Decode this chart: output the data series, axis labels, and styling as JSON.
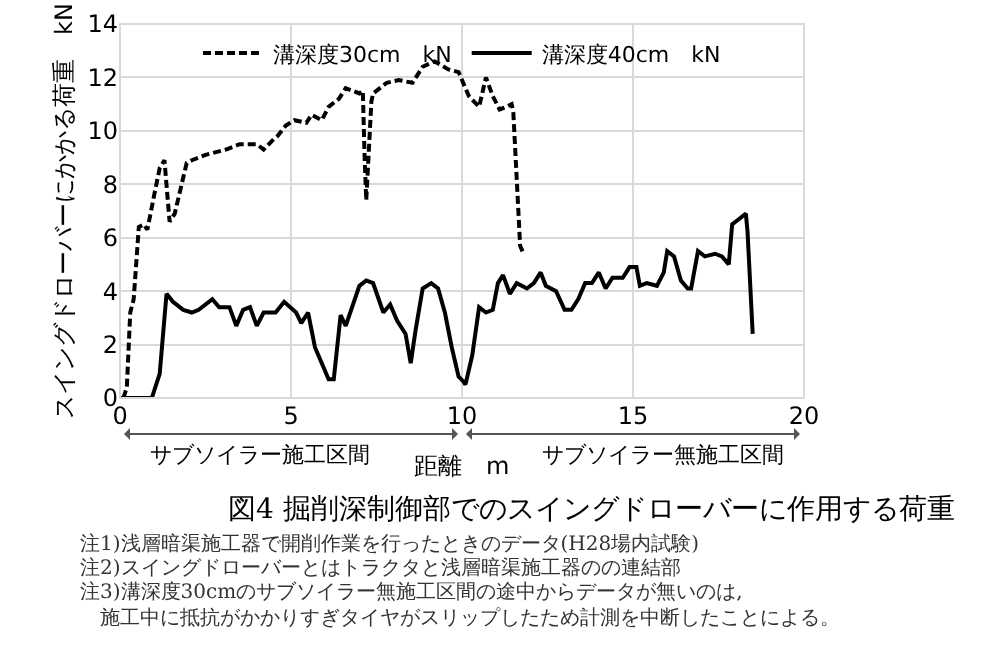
{
  "chart_data": {
    "type": "line",
    "title": "図4 掘削深制御部でのスイングドローバーに作用する荷重",
    "xlabel": "距離　m",
    "ylabel": "スイングドローバーにかかる荷重　kN",
    "xlim": [
      0,
      20
    ],
    "xticks": [
      0,
      5,
      10,
      15,
      20
    ],
    "ylim": [
      0,
      14
    ],
    "yticks": [
      0,
      2,
      4,
      6,
      8,
      10,
      12,
      14
    ],
    "grid": true,
    "legend": "top",
    "series": [
      {
        "name": "溝深度30cm　kN",
        "color": "#000000",
        "line_style": "dashed",
        "x": [
          0.1,
          0.2,
          0.3,
          0.4,
          0.55,
          0.7,
          0.8,
          1.0,
          1.16,
          1.3,
          1.45,
          1.6,
          1.95,
          2.1,
          2.5,
          3.1,
          3.5,
          4.0,
          4.2,
          4.5,
          4.6,
          4.85,
          5.1,
          5.45,
          5.6,
          5.9,
          6.1,
          6.4,
          6.6,
          6.8,
          7.0,
          7.1,
          7.15,
          7.2,
          7.35,
          7.4,
          7.8,
          8.15,
          8.55,
          8.85,
          9.2,
          9.6,
          9.9,
          10.2,
          10.5,
          10.7,
          10.9,
          11.1,
          11.3,
          11.45,
          11.5,
          11.6,
          11.7,
          11.8
        ],
        "values": [
          0,
          0.4,
          3.2,
          3.7,
          6.4,
          6.5,
          6.3,
          7.6,
          8.6,
          8.9,
          6.6,
          6.9,
          8.8,
          8.9,
          9.1,
          9.3,
          9.5,
          9.5,
          9.3,
          9.7,
          9.8,
          10.2,
          10.4,
          10.3,
          10.6,
          10.4,
          10.9,
          11.2,
          11.6,
          11.5,
          11.4,
          11.5,
          9.1,
          7.4,
          11.1,
          11.4,
          11.8,
          11.9,
          11.8,
          12.4,
          12.6,
          12.3,
          12.2,
          11.3,
          10.9,
          12.0,
          11.3,
          10.8,
          10.9,
          11.0,
          10.7,
          8.2,
          5.7,
          5.4
        ]
      },
      {
        "name": "溝深度40cm　kN",
        "color": "#000000",
        "line_style": "solid",
        "x": [
          0,
          0.93,
          1.16,
          1.36,
          1.55,
          1.85,
          2.1,
          2.3,
          2.7,
          2.9,
          3.2,
          3.4,
          3.6,
          3.8,
          4.0,
          4.2,
          4.55,
          4.8,
          5.15,
          5.3,
          5.5,
          5.7,
          5.9,
          6.1,
          6.25,
          6.45,
          6.6,
          7.0,
          7.2,
          7.4,
          7.7,
          7.9,
          8.1,
          8.35,
          8.5,
          8.65,
          8.85,
          9.1,
          9.3,
          9.5,
          9.7,
          9.9,
          10.05,
          10.1,
          10.3,
          10.5,
          10.7,
          10.9,
          11.05,
          11.2,
          11.4,
          11.6,
          11.9,
          12.1,
          12.3,
          12.45,
          12.75,
          13.0,
          13.2,
          13.4,
          13.6,
          13.8,
          14.0,
          14.2,
          14.4,
          14.7,
          14.9,
          15.1,
          15.2,
          15.4,
          15.7,
          15.9,
          16.0,
          16.2,
          16.4,
          16.6,
          16.7,
          16.9,
          17.1,
          17.4,
          17.6,
          17.8,
          17.9,
          18.1,
          18.3,
          18.35,
          18.5
        ],
        "values": [
          0,
          0,
          0.9,
          3.9,
          3.6,
          3.3,
          3.2,
          3.3,
          3.7,
          3.4,
          3.4,
          2.7,
          3.3,
          3.4,
          2.7,
          3.2,
          3.2,
          3.6,
          3.2,
          2.8,
          3.2,
          1.9,
          1.3,
          0.7,
          0.7,
          3.1,
          2.7,
          4.2,
          4.4,
          4.3,
          3.2,
          3.5,
          2.9,
          2.4,
          1.3,
          2.6,
          4.1,
          4.3,
          4.1,
          3.2,
          1.9,
          0.8,
          0.6,
          0.5,
          1.6,
          3.4,
          3.2,
          3.3,
          4.3,
          4.6,
          3.9,
          4.3,
          4.1,
          4.3,
          4.7,
          4.2,
          4.0,
          3.3,
          3.3,
          3.7,
          4.3,
          4.3,
          4.7,
          4.1,
          4.5,
          4.5,
          4.9,
          4.9,
          4.2,
          4.3,
          4.2,
          4.7,
          5.5,
          5.3,
          4.4,
          4.1,
          4.1,
          5.5,
          5.3,
          5.4,
          5.3,
          5.0,
          6.5,
          6.7,
          6.9,
          6.2,
          2.4
        ]
      }
    ],
    "annotations": [
      "サブソイラー施工区間",
      "サブソイラー無施工区間",
      "注1)浅層暗渠施工器で開削作業を行ったときのデータ(H28場内試験)",
      "注2)スイングドローバーとはトラクタと浅層暗渠施工器のの連結部",
      "注3)溝深度30cmのサブソイラー無施工区間の途中からデータが無いのは,\n　施工中に抵抗がかかりすぎタイヤがスリップしたため計測を中断したことによる。"
    ]
  }
}
